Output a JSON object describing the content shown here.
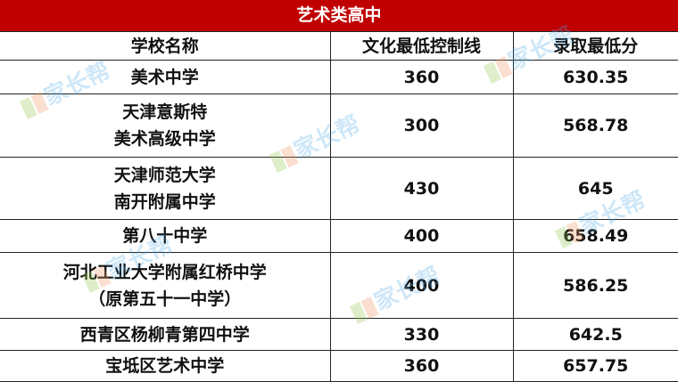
{
  "title": "艺术类高中",
  "watermark": "家长帮",
  "colors": {
    "title_bg": "#c00000",
    "title_text": "#ffffff"
  },
  "headers": [
    "学校名称",
    "文化最低控制线",
    "录取最低分"
  ],
  "rows": [
    {
      "school": [
        "美术中学"
      ],
      "control_line": "360",
      "min_score": "630.35"
    },
    {
      "school": [
        "天津意斯特",
        "美术高级中学"
      ],
      "control_line": "300",
      "min_score": "568.78"
    },
    {
      "school": [
        "天津师范大学",
        "南开附属中学"
      ],
      "control_line": "430",
      "min_score": "645"
    },
    {
      "school": [
        "第八十中学"
      ],
      "control_line": "400",
      "min_score": "658.49"
    },
    {
      "school": [
        "河北工业大学附属红桥中学",
        "（原第五十一中学）"
      ],
      "control_line": "400",
      "min_score": "586.25"
    },
    {
      "school": [
        "西青区杨柳青第四中学"
      ],
      "control_line": "330",
      "min_score": "642.5"
    },
    {
      "school": [
        "宝坻区艺术中学"
      ],
      "control_line": "360",
      "min_score": "657.75"
    }
  ]
}
